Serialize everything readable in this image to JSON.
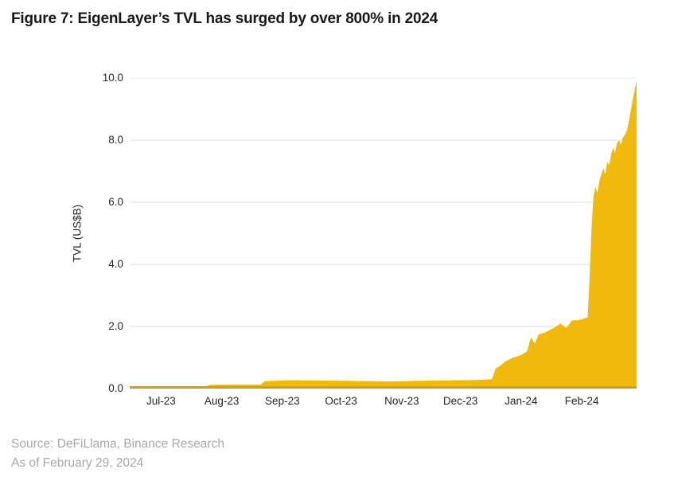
{
  "title": "Figure 7: EigenLayer’s TVL has surged by over 800% in 2024",
  "source": {
    "line1": "Source: DeFiLlama, Binance Research",
    "line2": "As of February 29, 2024"
  },
  "colors": {
    "area_fill": "#F0B90B",
    "baseline": "#D29E06",
    "gridline": "#DCDCDC",
    "title_text": "#17181C",
    "tick_text": "#262626",
    "source_text": "#A8A8A8",
    "background": "#FFFFFF"
  },
  "chart_data": {
    "type": "area",
    "title": "Figure 7: EigenLayer’s TVL has surged by over 800% in 2024",
    "xlabel": "",
    "ylabel": "TVL (US$B)",
    "ylim": [
      0,
      10
    ],
    "grid": "horizontal",
    "legend": "none",
    "x_range": [
      "2023-06-15",
      "2024-02-29"
    ],
    "yticks": [
      {
        "label": "0.0",
        "value": 0
      },
      {
        "label": "2.0",
        "value": 2
      },
      {
        "label": "4.0",
        "value": 4
      },
      {
        "label": "6.0",
        "value": 6
      },
      {
        "label": "8.0",
        "value": 8
      },
      {
        "label": "10.0",
        "value": 10
      }
    ],
    "xticks": [
      {
        "label": "Jul-23",
        "date": "2023-07-01"
      },
      {
        "label": "Aug-23",
        "date": "2023-08-01"
      },
      {
        "label": "Sep-23",
        "date": "2023-09-01"
      },
      {
        "label": "Oct-23",
        "date": "2023-10-01"
      },
      {
        "label": "Nov-23",
        "date": "2023-11-01"
      },
      {
        "label": "Dec-23",
        "date": "2023-12-01"
      },
      {
        "label": "Jan-24",
        "date": "2024-01-01"
      },
      {
        "label": "Feb-24",
        "date": "2024-02-01"
      }
    ],
    "series": [
      {
        "name": "EigenLayer TVL (US$B)",
        "points": [
          [
            "2023-06-15",
            0.02
          ],
          [
            "2023-06-22",
            0.04
          ],
          [
            "2023-07-01",
            0.05
          ],
          [
            "2023-07-12",
            0.06
          ],
          [
            "2023-07-24",
            0.07
          ],
          [
            "2023-07-26",
            0.12
          ],
          [
            "2023-08-05",
            0.13
          ],
          [
            "2023-08-21",
            0.13
          ],
          [
            "2023-08-23",
            0.24
          ],
          [
            "2023-09-05",
            0.27
          ],
          [
            "2023-09-20",
            0.26
          ],
          [
            "2023-10-05",
            0.25
          ],
          [
            "2023-10-25",
            0.23
          ],
          [
            "2023-11-08",
            0.25
          ],
          [
            "2023-11-20",
            0.26
          ],
          [
            "2023-12-01",
            0.27
          ],
          [
            "2023-12-10",
            0.28
          ],
          [
            "2023-12-17",
            0.3
          ],
          [
            "2023-12-19",
            0.65
          ],
          [
            "2023-12-21",
            0.72
          ],
          [
            "2023-12-24",
            0.88
          ],
          [
            "2023-12-28",
            1.0
          ],
          [
            "2024-01-01",
            1.08
          ],
          [
            "2024-01-04",
            1.2
          ],
          [
            "2024-01-06",
            1.65
          ],
          [
            "2024-01-08",
            1.45
          ],
          [
            "2024-01-10",
            1.75
          ],
          [
            "2024-01-13",
            1.8
          ],
          [
            "2024-01-16",
            1.9
          ],
          [
            "2024-01-19",
            2.0
          ],
          [
            "2024-01-21",
            2.1
          ],
          [
            "2024-01-24",
            1.95
          ],
          [
            "2024-01-27",
            2.2
          ],
          [
            "2024-01-30",
            2.2
          ],
          [
            "2024-02-02",
            2.25
          ],
          [
            "2024-02-04",
            2.3
          ],
          [
            "2024-02-05",
            3.6
          ],
          [
            "2024-02-06",
            5.2
          ],
          [
            "2024-02-07",
            6.2
          ],
          [
            "2024-02-08",
            6.5
          ],
          [
            "2024-02-09",
            6.3
          ],
          [
            "2024-02-10",
            6.7
          ],
          [
            "2024-02-12",
            7.1
          ],
          [
            "2024-02-13",
            6.9
          ],
          [
            "2024-02-14",
            7.3
          ],
          [
            "2024-02-15",
            7.2
          ],
          [
            "2024-02-16",
            7.55
          ],
          [
            "2024-02-17",
            7.75
          ],
          [
            "2024-02-18",
            7.6
          ],
          [
            "2024-02-19",
            7.9
          ],
          [
            "2024-02-20",
            8.0
          ],
          [
            "2024-02-21",
            7.85
          ],
          [
            "2024-02-22",
            8.1
          ],
          [
            "2024-02-23",
            8.15
          ],
          [
            "2024-02-24",
            8.3
          ],
          [
            "2024-02-25",
            8.6
          ],
          [
            "2024-02-26",
            8.95
          ],
          [
            "2024-02-27",
            9.3
          ],
          [
            "2024-02-28",
            9.6
          ],
          [
            "2024-02-29",
            9.9
          ]
        ]
      }
    ]
  }
}
